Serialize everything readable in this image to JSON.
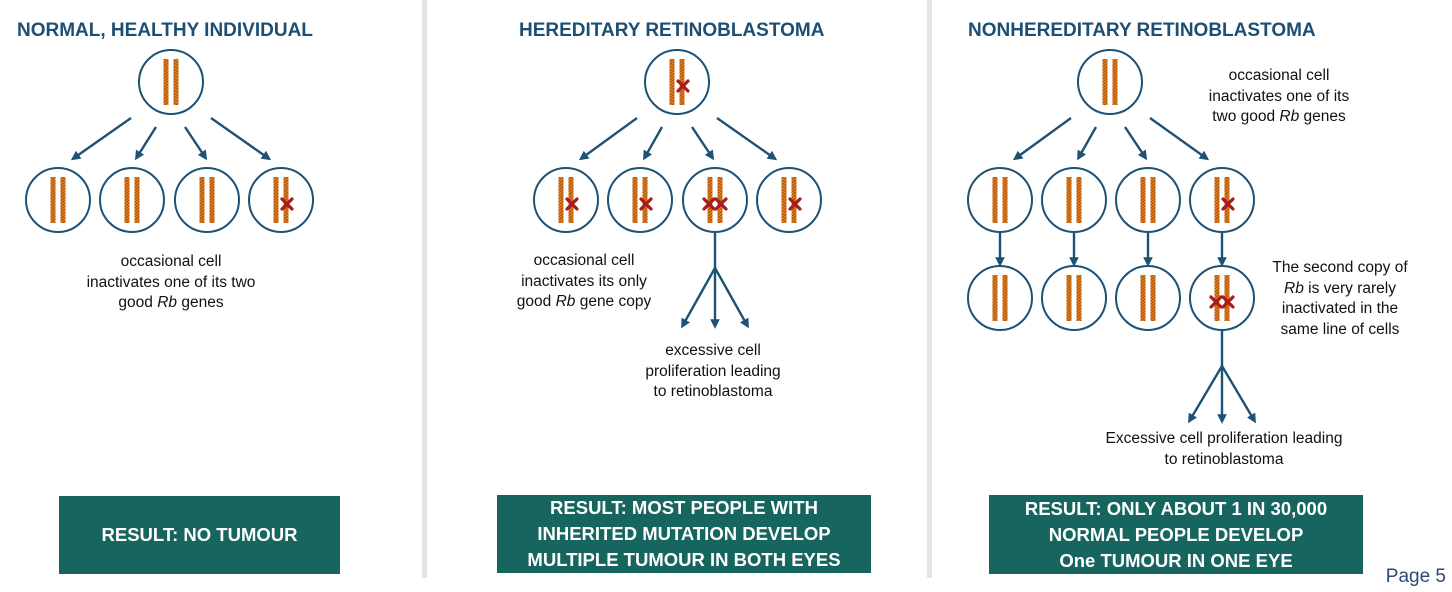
{
  "colors": {
    "arrow": "#1d5275",
    "chromosome": "#e07a1a",
    "mutation": "#a81c1c",
    "result_bg": "#17655f",
    "title": "#1d4f73"
  },
  "panels": {
    "normal": {
      "title": "NORMAL, HEALTHY INDIVIDUAL",
      "caption": [
        "occasional cell",
        "inactivates one of its two",
        [
          "good ",
          "Rb",
          " genes"
        ]
      ],
      "result": [
        "RESULT: NO TUMOUR"
      ]
    },
    "hereditary": {
      "title": "HEREDITARY RETINOBLASTOMA",
      "caption1": [
        "occasional cell",
        "inactivates its only",
        [
          "good ",
          "Rb",
          " gene copy"
        ]
      ],
      "caption2": [
        "excessive cell",
        "proliferation leading",
        "to retinoblastoma"
      ],
      "result": [
        "RESULT: MOST PEOPLE WITH",
        "INHERITED MUTATION DEVELOP",
        "MULTIPLE TUMOUR IN BOTH EYES"
      ]
    },
    "nonhereditary": {
      "title": "NONHEREDITARY RETINOBLASTOMA",
      "caption1": [
        "occasional cell",
        "inactivates one of its",
        [
          "two good ",
          "Rb",
          " genes"
        ]
      ],
      "caption2": [
        "The second copy of",
        [
          "",
          "Rb",
          " is very rarely"
        ],
        "inactivated in the",
        "same line of cells"
      ],
      "caption3": [
        "Excessive cell proliferation leading",
        "to retinoblastoma"
      ],
      "result": [
        "RESULT: ONLY ABOUT 1 IN 30,000",
        "NORMAL PEOPLE DEVELOP",
        "One TUMOUR IN ONE EYE"
      ]
    }
  },
  "page_label": "Page 5"
}
